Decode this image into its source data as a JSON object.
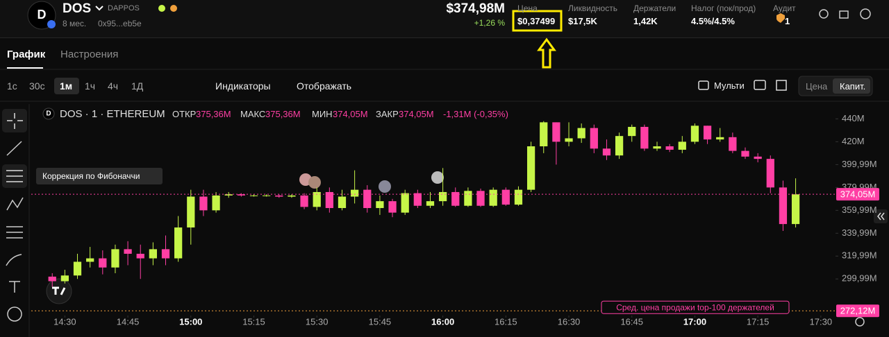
{
  "header": {
    "avatar": "D",
    "symbol": "DOS",
    "project": "DAPPOS",
    "age": "8 мес.",
    "address": "0x95...eb5e",
    "market_cap": "$374,98M",
    "change": "+1,26 %",
    "stats": [
      {
        "label": "Цена",
        "value": "$0,37499"
      },
      {
        "label": "Ликвидность",
        "value": "$17,5K"
      },
      {
        "label": "Держатели",
        "value": "1,42K"
      },
      {
        "label": "Налог (пок/прод)",
        "value": "4.5%/4.5%"
      },
      {
        "label": "Аудит",
        "value": "1"
      }
    ]
  },
  "tabs": [
    "График",
    "Настроения"
  ],
  "toolbar": {
    "intervals": [
      "1с",
      "30с",
      "1м",
      "1ч",
      "4ч",
      "1Д"
    ],
    "indicators": "Индикаторы",
    "display": "Отображать",
    "multi": "Мульти",
    "modes": [
      "Цена",
      "Капит."
    ]
  },
  "tooltip": "Коррекция по Фибоначчи",
  "legend": {
    "avatar": "D",
    "title": "DOS · 1 · ETHEREUM",
    "items": [
      {
        "label": "ОТКР",
        "value": "375,36M"
      },
      {
        "label": "МАКС",
        "value": "375,36M"
      },
      {
        "label": "МИН",
        "value": "374,05M"
      },
      {
        "label": "ЗАКР",
        "value": "374,05M"
      }
    ],
    "change": "-1,31M (-0,35%)"
  },
  "chart_data": {
    "type": "candlestick",
    "up_color": "#c6f548",
    "down_color": "#ff3fa4",
    "x": [
      "14:27",
      "14:30",
      "14:33",
      "14:36",
      "14:39",
      "14:42",
      "14:45",
      "14:48",
      "14:51",
      "14:54",
      "14:57",
      "15:00",
      "15:03",
      "15:06",
      "15:09",
      "15:12",
      "15:15",
      "15:18",
      "15:21",
      "15:24",
      "15:27",
      "15:30",
      "15:33",
      "15:36",
      "15:39",
      "15:42",
      "15:45",
      "15:48",
      "15:51",
      "15:54",
      "15:57",
      "16:00",
      "16:03",
      "16:06",
      "16:09",
      "16:12",
      "16:15",
      "16:18",
      "16:21",
      "16:24",
      "16:27",
      "16:30",
      "16:33",
      "16:36",
      "16:39",
      "16:42",
      "16:45",
      "16:48",
      "16:51",
      "16:54",
      "16:57",
      "17:00",
      "17:03",
      "17:06",
      "17:09",
      "17:12",
      "17:15",
      "17:18",
      "17:21",
      "17:24"
    ],
    "open": [
      302,
      298,
      303,
      315,
      318,
      310,
      326,
      322,
      318,
      326,
      318,
      345,
      372,
      360,
      373,
      374,
      373,
      373,
      373,
      372,
      373,
      363,
      376,
      362,
      372,
      378,
      362,
      368,
      358,
      375,
      364,
      368,
      376,
      364,
      377,
      364,
      378,
      365,
      378,
      416,
      437,
      420,
      423,
      432,
      414,
      408,
      425,
      433,
      414,
      416,
      413,
      420,
      434,
      422,
      424,
      412,
      407,
      405,
      380,
      348
    ],
    "high": [
      305,
      308,
      322,
      328,
      325,
      330,
      333,
      330,
      332,
      338,
      355,
      378,
      378,
      376,
      376,
      375,
      374,
      374,
      374,
      374,
      375,
      380,
      380,
      378,
      395,
      382,
      373,
      370,
      378,
      378,
      376,
      397,
      380,
      380,
      379,
      380,
      380,
      381,
      420,
      438,
      437,
      437,
      436,
      435,
      422,
      428,
      435,
      435,
      420,
      418,
      425,
      436,
      434,
      432,
      428,
      415,
      410,
      408,
      386,
      388
    ],
    "low": [
      293,
      296,
      300,
      310,
      304,
      305,
      312,
      300,
      312,
      312,
      315,
      330,
      355,
      358,
      371,
      372,
      372,
      372,
      371,
      371,
      361,
      360,
      358,
      360,
      366,
      358,
      356,
      354,
      356,
      362,
      362,
      364,
      363,
      363,
      363,
      363,
      364,
      364,
      376,
      410,
      400,
      416,
      419,
      410,
      404,
      405,
      420,
      412,
      412,
      411,
      410,
      418,
      418,
      420,
      410,
      405,
      402,
      375,
      342,
      345
    ],
    "close": [
      298,
      303,
      315,
      318,
      310,
      326,
      322,
      318,
      326,
      318,
      345,
      372,
      360,
      373,
      374,
      373,
      373,
      373,
      372,
      373,
      363,
      376,
      362,
      372,
      378,
      362,
      368,
      358,
      375,
      364,
      368,
      376,
      364,
      377,
      364,
      378,
      365,
      378,
      416,
      437,
      420,
      423,
      432,
      414,
      408,
      425,
      433,
      414,
      416,
      413,
      420,
      434,
      422,
      424,
      412,
      407,
      405,
      380,
      348,
      374
    ],
    "xlim": [
      "14:22",
      "17:33"
    ],
    "xticks": [
      "14:30",
      "14:45",
      "15:00",
      "15:15",
      "15:30",
      "15:45",
      "16:00",
      "16:15",
      "16:30",
      "16:45",
      "17:00",
      "17:15",
      "17:30"
    ],
    "ylim": [
      268,
      453
    ],
    "yticks": [
      {
        "value": 440,
        "label": "440M"
      },
      {
        "value": 420,
        "label": "420M"
      },
      {
        "value": 399.99,
        "label": "399,99M"
      },
      {
        "value": 379.99,
        "label": "379,99M"
      },
      {
        "value": 359.99,
        "label": "359,99M"
      },
      {
        "value": 339.99,
        "label": "339,99M"
      },
      {
        "value": 319.99,
        "label": "319,99M"
      },
      {
        "value": 299.99,
        "label": "299,99M"
      }
    ],
    "price_lines": [
      {
        "value": 374.05,
        "label": "374,05M",
        "color": "#ff3fa4"
      },
      {
        "value": 272.12,
        "label": "272,12M",
        "color": "#f0a03c"
      }
    ],
    "annotation": "Сред. цена продажи top-100 держателей"
  }
}
